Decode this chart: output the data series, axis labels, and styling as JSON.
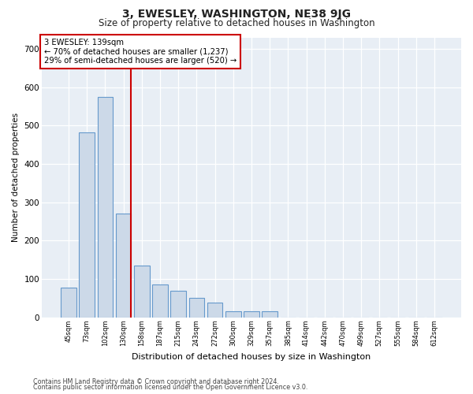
{
  "title": "3, EWESLEY, WASHINGTON, NE38 9JG",
  "subtitle": "Size of property relative to detached houses in Washington",
  "xlabel": "Distribution of detached houses by size in Washington",
  "ylabel": "Number of detached properties",
  "footnote1": "Contains HM Land Registry data © Crown copyright and database right 2024.",
  "footnote2": "Contains public sector information licensed under the Open Government Licence v3.0.",
  "bar_color": "#ccd9e8",
  "bar_edge_color": "#6699cc",
  "annotation_box_color": "#cc0000",
  "annotation_line_color": "#cc0000",
  "annotation_text1": "3 EWESLEY: 139sqm",
  "annotation_text2": "← 70% of detached houses are smaller (1,237)",
  "annotation_text3": "29% of semi-detached houses are larger (520) →",
  "categories": [
    "45sqm",
    "73sqm",
    "102sqm",
    "130sqm",
    "158sqm",
    "187sqm",
    "215sqm",
    "243sqm",
    "272sqm",
    "300sqm",
    "329sqm",
    "357sqm",
    "385sqm",
    "414sqm",
    "442sqm",
    "470sqm",
    "499sqm",
    "527sqm",
    "555sqm",
    "584sqm",
    "612sqm"
  ],
  "values": [
    78,
    482,
    575,
    270,
    134,
    85,
    68,
    50,
    38,
    15,
    15,
    15,
    0,
    0,
    0,
    0,
    0,
    0,
    0,
    0,
    0
  ],
  "ylim": [
    0,
    730
  ],
  "yticks": [
    0,
    100,
    200,
    300,
    400,
    500,
    600,
    700
  ],
  "red_line_bar_index": 3,
  "bg_color": "#e8eef5",
  "fig_bg": "#ffffff"
}
